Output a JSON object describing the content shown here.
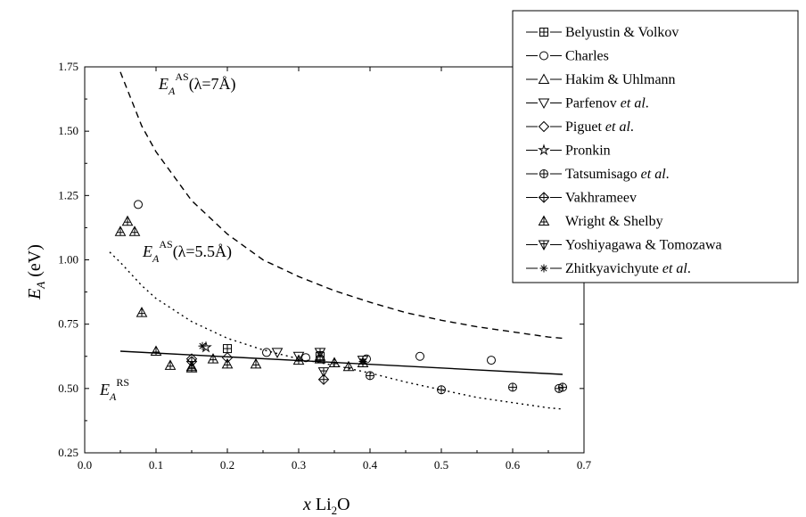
{
  "chart_data": {
    "type": "scatter",
    "xlabel": "x Li₂O",
    "ylabel": "E_A (eV)",
    "xlim": [
      0.0,
      0.7
    ],
    "ylim": [
      0.25,
      1.75
    ],
    "x_ticks": [
      "0.0",
      "0.1",
      "0.2",
      "0.3",
      "0.4",
      "0.5",
      "0.6",
      "0.7"
    ],
    "y_ticks": [
      "0.25",
      "0.50",
      "0.75",
      "1.00",
      "1.25",
      "1.50",
      "1.75"
    ],
    "grid": false,
    "legend_position": "top-right",
    "series": [
      {
        "name": "Belyustin & Volkov",
        "marker": "square-plus",
        "points": [
          [
            0.2,
            0.655
          ],
          [
            0.33,
            0.625
          ]
        ]
      },
      {
        "name": "Charles",
        "marker": "circle",
        "points": [
          [
            0.075,
            1.215
          ],
          [
            0.255,
            0.64
          ],
          [
            0.31,
            0.62
          ],
          [
            0.395,
            0.615
          ],
          [
            0.47,
            0.625
          ],
          [
            0.57,
            0.61
          ]
        ]
      },
      {
        "name": "Hakim & Uhlmann",
        "marker": "triangle-up",
        "points": [
          [
            0.33,
            0.625
          ]
        ]
      },
      {
        "name": "Parfenov et al.",
        "marker": "triangle-down",
        "points": [
          [
            0.27,
            0.64
          ],
          [
            0.3,
            0.625
          ]
        ]
      },
      {
        "name": "Piguet et al.",
        "marker": "diamond",
        "points": [
          [
            0.15,
            0.615
          ],
          [
            0.2,
            0.62
          ]
        ]
      },
      {
        "name": "Pronkin",
        "marker": "star",
        "points": [
          [
            0.17,
            0.66
          ]
        ]
      },
      {
        "name": "Tatsumisago et al.",
        "marker": "circle-plus",
        "points": [
          [
            0.4,
            0.55
          ],
          [
            0.5,
            0.495
          ],
          [
            0.6,
            0.505
          ],
          [
            0.665,
            0.5
          ],
          [
            0.67,
            0.505
          ]
        ]
      },
      {
        "name": "Vakhrameev",
        "marker": "diamond-plus",
        "points": [
          [
            0.15,
            0.605
          ],
          [
            0.335,
            0.535
          ]
        ]
      },
      {
        "name": "Wright & Shelby",
        "marker": "triangle-plus",
        "points": [
          [
            0.05,
            1.11
          ],
          [
            0.06,
            1.15
          ],
          [
            0.07,
            1.11
          ],
          [
            0.08,
            0.795
          ],
          [
            0.1,
            0.645
          ],
          [
            0.12,
            0.59
          ],
          [
            0.15,
            0.585
          ],
          [
            0.15,
            0.58
          ],
          [
            0.18,
            0.615
          ],
          [
            0.2,
            0.595
          ],
          [
            0.24,
            0.595
          ],
          [
            0.3,
            0.61
          ],
          [
            0.33,
            0.615
          ],
          [
            0.35,
            0.6
          ],
          [
            0.37,
            0.585
          ],
          [
            0.39,
            0.6
          ]
        ]
      },
      {
        "name": "Yoshiyagawa & Tomozawa",
        "marker": "triangle-down-plus",
        "points": [
          [
            0.33,
            0.64
          ],
          [
            0.335,
            0.565
          ],
          [
            0.39,
            0.61
          ]
        ]
      },
      {
        "name": "Zhitkyavichyute et al.",
        "marker": "asterisk",
        "points": [
          [
            0.165,
            0.665
          ],
          [
            0.39,
            0.605
          ]
        ]
      }
    ],
    "curves": [
      {
        "label": "E_A^AS(λ=7Å)",
        "style": "dashed",
        "x": [
          0.05,
          0.08,
          0.1,
          0.15,
          0.2,
          0.25,
          0.3,
          0.35,
          0.4,
          0.45,
          0.5,
          0.55,
          0.6,
          0.65,
          0.67
        ],
        "y": [
          1.73,
          1.52,
          1.42,
          1.23,
          1.1,
          1.0,
          0.935,
          0.88,
          0.835,
          0.795,
          0.765,
          0.74,
          0.72,
          0.7,
          0.695
        ]
      },
      {
        "label": "E_A^AS(λ=5.5Å)",
        "style": "dotted",
        "x": [
          0.035,
          0.05,
          0.08,
          0.1,
          0.15,
          0.2,
          0.25,
          0.3,
          0.35,
          0.4,
          0.45,
          0.5,
          0.55,
          0.6,
          0.65,
          0.67
        ],
        "y": [
          1.03,
          0.99,
          0.9,
          0.85,
          0.76,
          0.695,
          0.65,
          0.615,
          0.59,
          0.56,
          0.525,
          0.495,
          0.465,
          0.445,
          0.425,
          0.42
        ]
      },
      {
        "label": "E_A^RS",
        "style": "solid",
        "x": [
          0.05,
          0.67
        ],
        "y": [
          0.645,
          0.555
        ]
      }
    ]
  },
  "annotations": {
    "curve1_main": "E",
    "curve1_sub": "A",
    "curve1_sup": "AS",
    "curve1_tail": "(λ=7Å)",
    "curve2_main": "E",
    "curve2_sub": "A",
    "curve2_sup": "AS",
    "curve2_tail": "(λ=5.5Å)",
    "curve3_main": "E",
    "curve3_sub": "A",
    "curve3_sup": "RS"
  },
  "axis_labels": {
    "x_italic": "x",
    "x_main": " Li",
    "x_sub": "2",
    "x_tail": "O",
    "y_main": "E",
    "y_sub": "A",
    "y_tail": " (eV)"
  }
}
